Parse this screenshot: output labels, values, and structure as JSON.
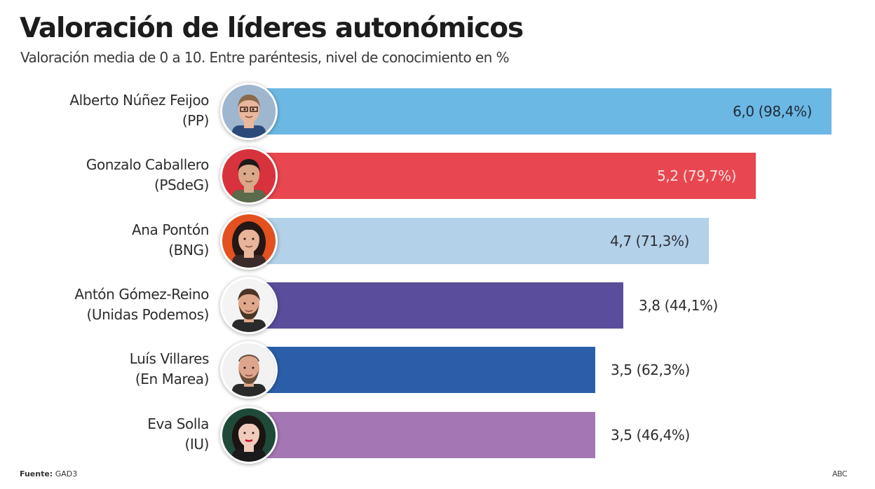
{
  "header": {
    "title": "Valoración de líderes autonómicos",
    "subtitle": "Valoración media de 0 a 10. Entre paréntesis, nivel de conocimiento en %"
  },
  "footer": {
    "source_label": "Fuente:",
    "source_value": "GAD3",
    "brand": "ABC"
  },
  "chart_data": {
    "type": "bar",
    "orientation": "horizontal",
    "title": "Valoración de líderes autonómicos",
    "subtitle": "Valoración media de 0 a 10. Entre paréntesis, nivel de conocimiento en %",
    "xlabel": "",
    "ylabel": "",
    "xlim": [
      0,
      10
    ],
    "grid": false,
    "categories": [
      "Alberto Núñez Feijoo (PP)",
      "Gonzalo Caballero (PSdeG)",
      "Ana Pontón (BNG)",
      "Antón Gómez-Reino (Unidas Podemos)",
      "Luís Villares (En Marea)",
      "Eva Solla (IU)"
    ],
    "series": [
      {
        "name": "Valoración media",
        "values": [
          6.0,
          5.2,
          4.7,
          3.8,
          3.5,
          3.5
        ]
      },
      {
        "name": "Nivel de conocimiento (%)",
        "values": [
          98.4,
          79.7,
          71.3,
          44.1,
          62.3,
          46.4
        ]
      }
    ],
    "rows": [
      {
        "name": "Alberto Núñez Feijoo",
        "party": "(PP)",
        "rating": 6.0,
        "awareness_pct": 98.4,
        "value_label": "6,0 (98,4%)",
        "color": "#6cb8e4",
        "label_color": "#1f2a36",
        "label_inside": true,
        "avatar": "feijoo-photo"
      },
      {
        "name": "Gonzalo Caballero",
        "party": "(PSdeG)",
        "rating": 5.2,
        "awareness_pct": 79.7,
        "value_label": "5,2 (79,7%)",
        "color": "#e8474f",
        "label_color": "#fbe3e4",
        "label_inside": true,
        "avatar": "caballero-photo"
      },
      {
        "name": "Ana Pontón",
        "party": "(BNG)",
        "rating": 4.7,
        "awareness_pct": 71.3,
        "value_label": "4,7 (71,3%)",
        "color": "#b3d1e8",
        "label_color": "#2b2f36",
        "label_inside": true,
        "avatar": "ponton-photo"
      },
      {
        "name": "Antón Gómez-Reino",
        "party": "(Unidas Podemos)",
        "rating": 3.8,
        "awareness_pct": 44.1,
        "value_label": "3,8 (44,1%)",
        "color": "#5a4d9b",
        "label_color": "#2c2c2c",
        "label_inside": false,
        "avatar": "gomez-reino-photo"
      },
      {
        "name": "Luís Villares",
        "party": "(En Marea)",
        "rating": 3.5,
        "awareness_pct": 62.3,
        "value_label": "3,5 (62,3%)",
        "color": "#2b5ea8",
        "label_color": "#2c2c2c",
        "label_inside": false,
        "avatar": "villares-photo"
      },
      {
        "name": "Eva Solla",
        "party": "(IU)",
        "rating": 3.5,
        "awareness_pct": 46.4,
        "value_label": "3,5 (46,4%)",
        "color": "#a477b4",
        "label_color": "#2c2c2c",
        "label_inside": false,
        "avatar": "solla-photo"
      }
    ]
  }
}
